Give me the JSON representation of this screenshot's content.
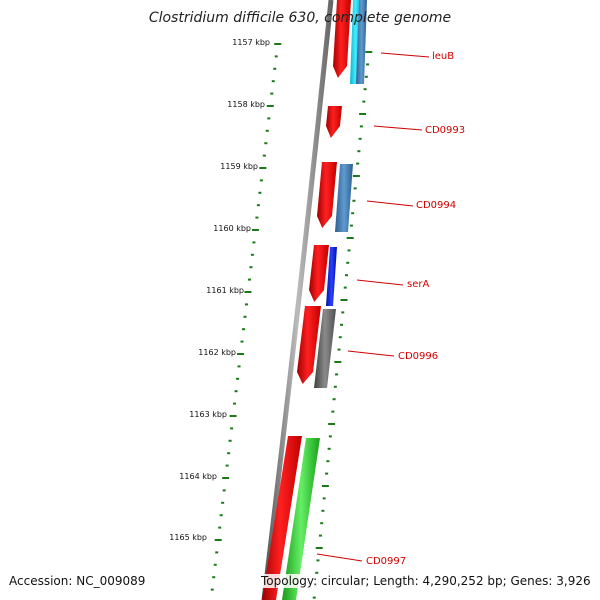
{
  "title": "Clostridium difficile 630, complete genome",
  "accession_text": "Accession: NC_009089",
  "summary_text": "Topology: circular; Length: 4,290,252 bp; Genes: 3,926",
  "colors": {
    "backbone": "#888888",
    "ticks": "#1a7a1a",
    "forward_cds": "#e00000",
    "gene_label": "#d00000",
    "leader_line": "#d00000",
    "feature_blue": "#4a84b8",
    "feature_cyan": "#22d8f0",
    "feature_darkblue": "#0a22e0",
    "feature_gray": "#6a6a6a",
    "feature_green": "#33cc33"
  },
  "kbp_ticks": [
    "1157 kbp",
    "1158 kbp",
    "1159 kbp",
    "1160 kbp",
    "1161 kbp",
    "1162 kbp",
    "1163 kbp",
    "1164 kbp",
    "1165 kbp"
  ],
  "gene_labels": [
    "leuB",
    "CD0993",
    "CD0994",
    "serA",
    "CD0996",
    "CD0997"
  ],
  "features": [
    {
      "track": "outer",
      "color": "forward_cds",
      "label": ""
    },
    {
      "track": "inner",
      "color": "feature_cyan",
      "label": "leuB"
    },
    {
      "track": "inner",
      "color": "feature_blue",
      "label": "leuB"
    },
    {
      "track": "outer",
      "color": "forward_cds",
      "label": "CD0993"
    },
    {
      "track": "outer",
      "color": "forward_cds",
      "label": ""
    },
    {
      "track": "inner",
      "color": "feature_blue",
      "label": "CD0994"
    },
    {
      "track": "outer",
      "color": "forward_cds",
      "label": ""
    },
    {
      "track": "inner",
      "color": "feature_darkblue",
      "label": "serA"
    },
    {
      "track": "outer",
      "color": "forward_cds",
      "label": ""
    },
    {
      "track": "inner",
      "color": "feature_gray",
      "label": "CD0996"
    },
    {
      "track": "outer",
      "color": "forward_cds",
      "label": ""
    },
    {
      "track": "inner",
      "color": "feature_green",
      "label": "CD0997"
    }
  ]
}
